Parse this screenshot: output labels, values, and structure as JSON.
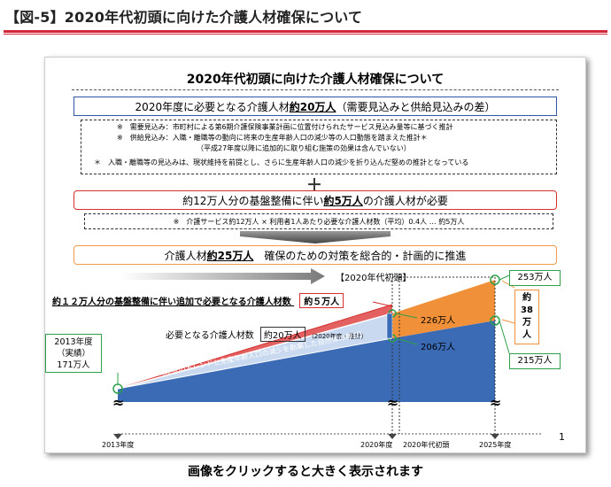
{
  "page": {
    "heading": "【図-5】2020年代初頭に向けた介護人材確保について",
    "footer": "画像をクリックすると大きく表示されます"
  },
  "slide": {
    "title": "2020年代初頭に向けた介護人材確保について",
    "box_blue": {
      "pre": "2020年度に必要となる介護人材 ",
      "value": "約20万人",
      "post": "（需要見込みと供給見込みの差）"
    },
    "notes": [
      "※　需要見込み：市町村による第6期介護保険事業計画に位置付けられたサービス見込み量等に基づく推計",
      "※　供給見込み：入職・離職等の動向に将来の生産年齢人口の減少等の人口動態を踏まえた推計＊",
      "（平成27年度以降に追加的に取り組む施策の効果は含んでいない）",
      "＊　入職・離職等の見込みは、現状維持を前提とし、さらに生産年齢人口の減少を折り込んだ堅めの推計となっている"
    ],
    "plus": "＋",
    "box_red": {
      "pre": "約12万人分の基盤整備に伴い",
      "value": "約5万人",
      "post": "の介護人材が必要"
    },
    "box_red_note": "※　介護サービス約12万人 × 利用者1人あたり必要な介護人材数（平均）0.4人 … 約5万人",
    "box_orange": {
      "pre": "介護人材 ",
      "value": "約25万人",
      "post": "　確保のための対策を総合的・計画的に推進"
    },
    "page_number": "1"
  },
  "chart": {
    "period_label": "【2020年代初頭】",
    "red_label_pre": "約１２万人分の基盤整備に伴い追加で必要となる介護人材数",
    "red_label_value": "約５万人",
    "needed_label_pre": "必要となる介護人材数",
    "needed_label_value": "約20万人",
    "needed_label_note": "（2020年度・推計）",
    "diagonal_text": "（現状のトレンドと生産年齢人口の減少を勘案した自然体の伸び）",
    "label_2013": [
      "2013年度",
      "（実績）",
      "171万人"
    ],
    "label_226": "226万人",
    "label_206": "206万人",
    "label_253": "253万人",
    "label_215": "215万人",
    "label_38": [
      "約",
      "38",
      "万",
      "人"
    ],
    "tilde": "≈",
    "axis": {
      "x2013": "2013年度",
      "x2020": "2020年度",
      "x2020s": "2020年代初頭",
      "x2025": "2025年度"
    },
    "colors": {
      "blue": "#3b6bb5",
      "orange": "#f0913a",
      "red": "#d63030",
      "green": "#2ea04a"
    }
  }
}
